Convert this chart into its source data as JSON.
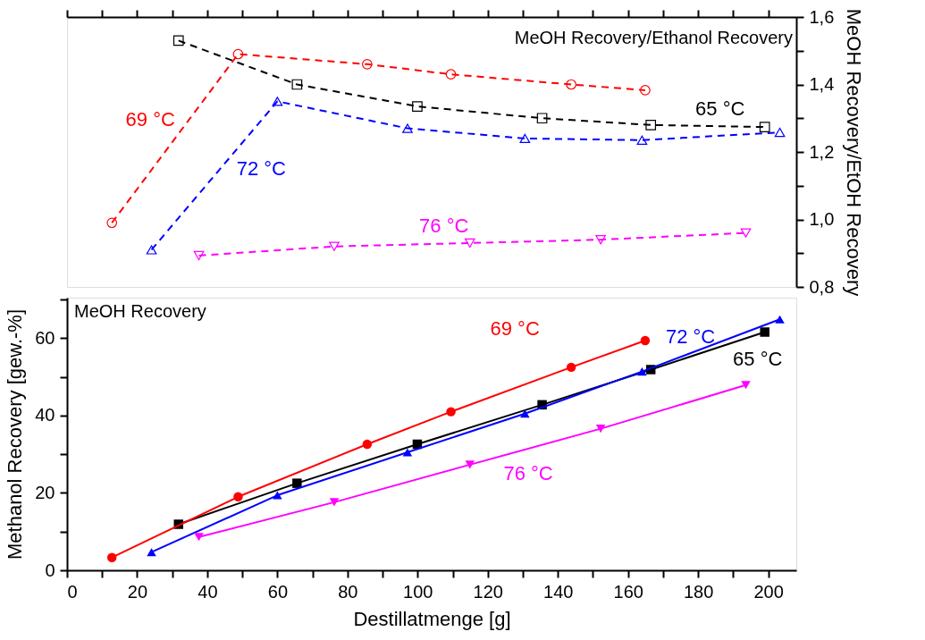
{
  "chart_data": [
    {
      "type": "line",
      "annotations": [
        "MeOH Recovery/Ethanol Recovery"
      ],
      "ylabel": "MeOH Recovery/EtOH Recovery",
      "line_style": "dashed",
      "tick_labels": "y",
      "xlim": [
        0,
        208
      ],
      "xticks": [
        0,
        {
          "value": 10,
          "label": null
        },
        20,
        {
          "value": 30,
          "label": null
        },
        40,
        {
          "value": 50,
          "label": null
        },
        60,
        {
          "value": 70,
          "label": null
        },
        80,
        {
          "value": 90,
          "label": null
        },
        100,
        {
          "value": 110,
          "label": null
        },
        120,
        {
          "value": 130,
          "label": null
        },
        140,
        {
          "value": 150,
          "label": null
        },
        160,
        {
          "value": 170,
          "label": null
        },
        180,
        {
          "value": 190,
          "label": null
        },
        200
      ],
      "ylim": [
        0.8,
        1.6
      ],
      "yticks": [
        {
          "value": 0.8,
          "label": "0,8"
        },
        {
          "value": 0.9,
          "label": null
        },
        {
          "value": 1.0,
          "label": "1,0"
        },
        {
          "value": 1.1,
          "label": null
        },
        {
          "value": 1.2,
          "label": "1,2"
        },
        {
          "value": 1.3,
          "label": null
        },
        {
          "value": 1.4,
          "label": "1,4"
        },
        {
          "value": 1.5,
          "label": null
        },
        {
          "value": 1.6,
          "label": "1,6"
        }
      ],
      "series": [
        {
          "name": "65 °C",
          "color": "#000000",
          "marker": "square",
          "x": [
            31.8,
            65.6,
            99.9,
            135.5,
            166.5,
            199
          ],
          "values": [
            1.53,
            1.4,
            1.335,
            1.3,
            1.28,
            1.274
          ]
        },
        {
          "name": "69 °C",
          "color": "#ff0000",
          "marker": "circle",
          "x": [
            12.8,
            48.8,
            85.6,
            109.5,
            143.8,
            164.9
          ],
          "values": [
            0.99,
            1.49,
            1.46,
            1.43,
            1.4,
            1.383
          ]
        },
        {
          "name": "72 °C",
          "color": "#0000ff",
          "marker": "triangle",
          "x": [
            24.1,
            60,
            97.1,
            130.6,
            164,
            203.3
          ],
          "values": [
            0.91,
            1.35,
            1.27,
            1.24,
            1.235,
            1.258
          ]
        },
        {
          "name": "76 °C",
          "color": "#ff00ff",
          "marker": "triangle-down",
          "x": [
            37.6,
            76.2,
            114.9,
            152.2,
            193.6
          ],
          "values": [
            0.893,
            0.92,
            0.93,
            0.94,
            0.96
          ]
        }
      ]
    },
    {
      "type": "line",
      "annotations": [
        "MeOH Recovery"
      ],
      "xlabel": "Destillatmenge [g]",
      "ylabel": "Methanol Recovery [gew.-%]",
      "line_style": "solid",
      "xlim": [
        0,
        208
      ],
      "xticks": [
        0,
        {
          "value": 10,
          "label": null
        },
        20,
        {
          "value": 30,
          "label": null
        },
        40,
        {
          "value": 50,
          "label": null
        },
        60,
        {
          "value": 70,
          "label": null
        },
        80,
        {
          "value": 90,
          "label": null
        },
        100,
        {
          "value": 110,
          "label": null
        },
        120,
        {
          "value": 130,
          "label": null
        },
        140,
        {
          "value": 150,
          "label": null
        },
        160,
        {
          "value": 170,
          "label": null
        },
        180,
        {
          "value": 190,
          "label": null
        },
        200
      ],
      "ylim": [
        0,
        70.5
      ],
      "yticks": [
        0,
        {
          "value": 10,
          "label": null
        },
        20,
        {
          "value": 30,
          "label": null
        },
        40,
        {
          "value": 50,
          "label": null
        },
        60,
        {
          "value": 70,
          "label": null
        }
      ],
      "series": [
        {
          "name": "65 °C",
          "color": "#000000",
          "marker": "square",
          "x": [
            31.8,
            65.6,
            99.9,
            135.5,
            166.5,
            199
          ],
          "values": [
            11.9,
            22.5,
            32.6,
            42.8,
            51.9,
            61.6
          ]
        },
        {
          "name": "69 °C",
          "color": "#ff0000",
          "marker": "circle",
          "x": [
            12.8,
            48.8,
            85.6,
            109.5,
            143.8,
            164.9
          ],
          "values": [
            3.3,
            19.0,
            32.6,
            41.0,
            52.5,
            59.4
          ]
        },
        {
          "name": "72 °C",
          "color": "#0000ff",
          "marker": "triangle",
          "x": [
            24.1,
            60,
            97.1,
            130.6,
            164,
            203.3
          ],
          "values": [
            4.7,
            19.4,
            30.5,
            40.5,
            51.4,
            64.9
          ]
        },
        {
          "name": "76 °C",
          "color": "#ff00ff",
          "marker": "triangle-down",
          "x": [
            37.6,
            76.2,
            114.9,
            152.2,
            193.6
          ],
          "values": [
            8.6,
            17.6,
            27.3,
            36.6,
            47.9
          ]
        }
      ]
    }
  ]
}
